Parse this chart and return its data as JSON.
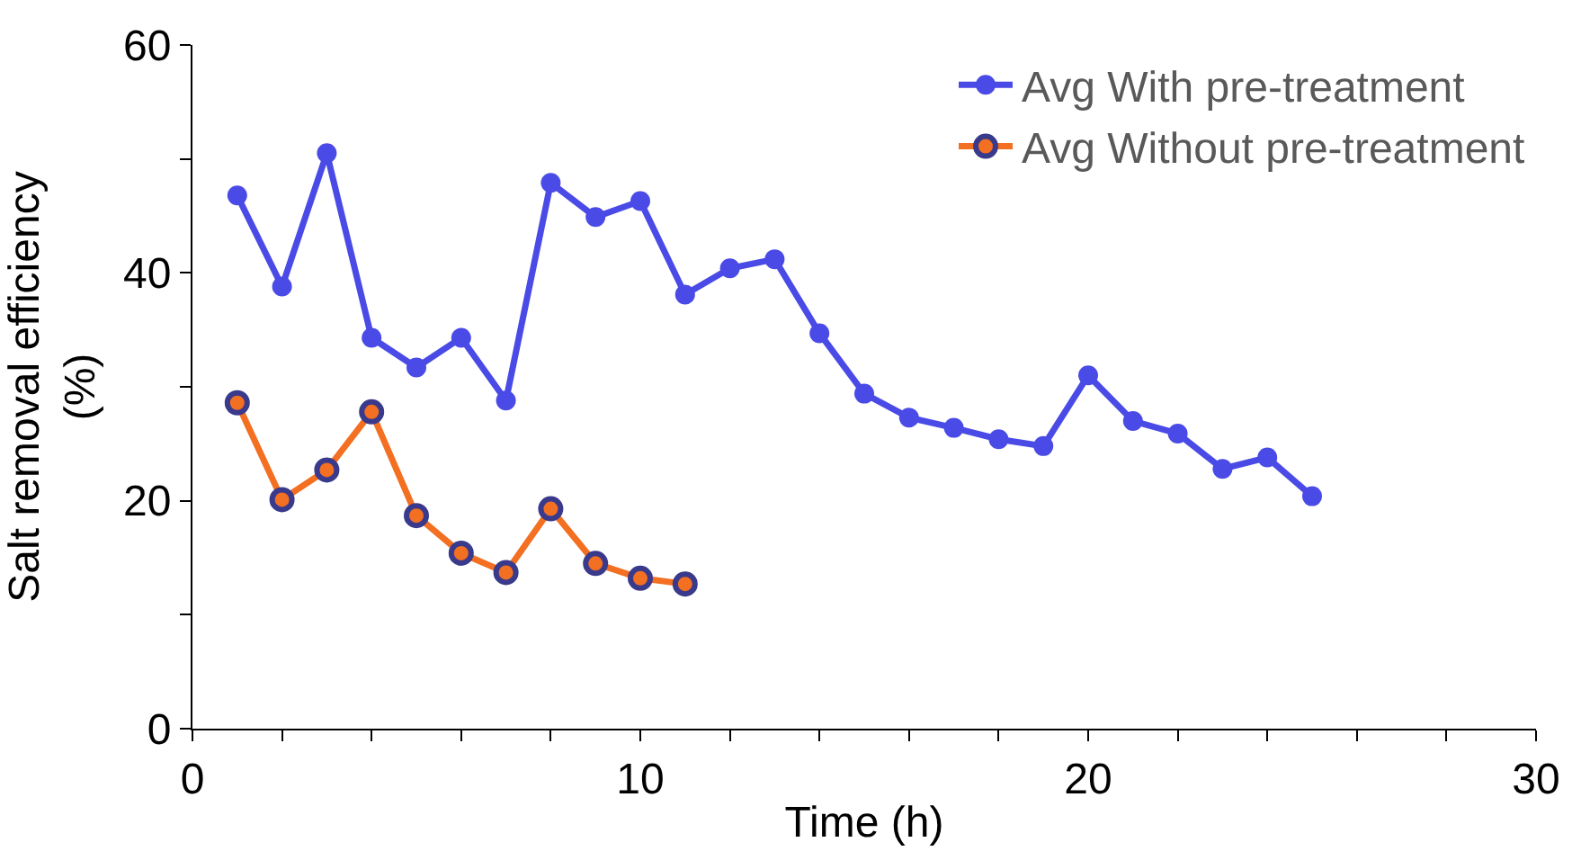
{
  "chart_data": {
    "type": "line",
    "xlabel": "Time (h)",
    "ylabel": "Salt removal efficiency (%)",
    "x": [
      1,
      2,
      3,
      4,
      5,
      6,
      7,
      8,
      9,
      10,
      11,
      12,
      13,
      14,
      15,
      16,
      17,
      18,
      19,
      20,
      21,
      22,
      23,
      24,
      25
    ],
    "series": [
      {
        "name": "Avg With pre-treatment",
        "color": "#4a4ae6",
        "values": [
          46.8,
          38.8,
          50.5,
          34.3,
          31.7,
          34.3,
          28.8,
          47.9,
          44.9,
          46.3,
          38.1,
          40.4,
          41.2,
          34.7,
          29.4,
          27.3,
          26.4,
          25.4,
          24.8,
          31.0,
          27.0,
          25.9,
          22.8,
          23.8,
          20.4
        ]
      },
      {
        "name": "Avg Without pre-treatment",
        "color": "#f36f21",
        "values": [
          28.6,
          20.1,
          22.7,
          27.8,
          18.7,
          15.4,
          13.7,
          19.3,
          14.5,
          13.2,
          12.7,
          null,
          null,
          null,
          null,
          null,
          null,
          null,
          null,
          null,
          null,
          null,
          null,
          null,
          null
        ]
      }
    ],
    "xlim": [
      0,
      30
    ],
    "ylim": [
      0,
      60
    ],
    "xticks": [
      0,
      {
        "value": 2,
        "label": null
      },
      {
        "value": 4,
        "label": null
      },
      {
        "value": 6,
        "label": null
      },
      {
        "value": 8,
        "label": null
      },
      10,
      {
        "value": 12,
        "label": null
      },
      {
        "value": 14,
        "label": null
      },
      {
        "value": 16,
        "label": null
      },
      {
        "value": 18,
        "label": null
      },
      20,
      {
        "value": 22,
        "label": null
      },
      {
        "value": 24,
        "label": null
      },
      {
        "value": 26,
        "label": null
      },
      {
        "value": 28,
        "label": null
      },
      30
    ],
    "yticks": [
      0,
      {
        "value": 10,
        "label": null
      },
      20,
      {
        "value": 30,
        "label": null
      },
      40,
      {
        "value": 50,
        "label": null
      },
      60
    ],
    "legend": "top right",
    "marker": "circle",
    "line_style": "solid"
  }
}
